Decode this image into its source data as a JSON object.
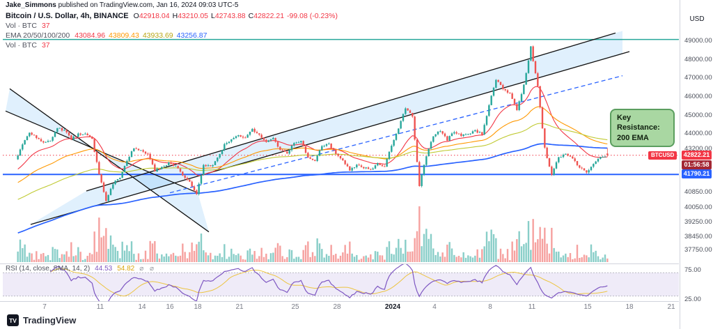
{
  "header": {
    "author": "Jake_Simmons",
    "rest": " published on TradingView.com, Jan 16, 2024 09:03 UTC-5"
  },
  "legend": {
    "title": "Bitcoin / U.S. Dollar, 4h, BINANCE",
    "ohlc": [
      [
        "O",
        "42918.04"
      ],
      [
        "H",
        "43210.05"
      ],
      [
        "L",
        "42743.88"
      ],
      [
        "C",
        "42822.21"
      ]
    ],
    "change": "-99.08 (-0.23%)",
    "vol_label": "Vol · BTC",
    "vol_value": "37",
    "ema_label": "EMA 20/50/100/200",
    "ema_values": [
      "43084.96",
      "43809.43",
      "43933.69",
      "43256.87"
    ],
    "ema_value_colors": [
      "#f23645",
      "#ff9800",
      "#b8a514",
      "#2962ff"
    ]
  },
  "rsi_legend": {
    "label": "RSI (14, close, SMA, 14, 2)",
    "value_rsi": "44.53",
    "value_sma": "54.82",
    "hide_icons": "⌀ ⌀"
  },
  "axis": {
    "currency_label": "USD",
    "price_ticks": [
      "49000.00",
      "48000.00",
      "47000.00",
      "46000.00",
      "45000.00",
      "44000.00",
      "43200.00",
      "40850.00",
      "40050.00",
      "39250.00",
      "38450.00",
      "37750.00"
    ],
    "rsi_ticks": [
      {
        "label": "75.00",
        "value": 75
      },
      {
        "label": "25.00",
        "value": 25
      }
    ],
    "price_badge": {
      "text": "42822.21",
      "price": 42822.21,
      "color": "#f23645"
    },
    "countdown_badge": {
      "text": "01:56:58",
      "color": "#a32734"
    },
    "level_badge": {
      "text": "41790.21",
      "price": 41790.21,
      "color": "#2962ff"
    }
  },
  "symbol_tag": {
    "text": "BTCUSD",
    "price": 42822.21
  },
  "annotation": {
    "text": "Key Resistance: 200 EMA"
  },
  "footer": {
    "brand": "TradingView"
  },
  "chart_data": {
    "type": "candlestick",
    "title": "Bitcoin / U.S. Dollar, 4h, BINANCE",
    "x_axis_note": "days, Dec 5 2023 = day 0, 6 candles per day (4h)",
    "price_axis_range_visible": [
      37075,
      50425
    ],
    "closes_12h": [
      42600,
      43400,
      44050,
      43800,
      43500,
      43650,
      44300,
      44150,
      43700,
      43950,
      44000,
      43650,
      41800,
      40350,
      41300,
      41600,
      42500,
      43250,
      43050,
      42850,
      42000,
      42150,
      42400,
      42250,
      41700,
      41350,
      40750,
      42300,
      42200,
      42650,
      43400,
      43700,
      43900,
      43750,
      44250,
      43900,
      43600,
      43800,
      43100,
      42950,
      43500,
      43550,
      42700,
      42500,
      43300,
      43400,
      42950,
      42500,
      42050,
      42300,
      42150,
      42050,
      42350,
      42250,
      43300,
      44300,
      45400,
      44950,
      41200,
      42800,
      43900,
      44150,
      43650,
      44100,
      43900,
      44000,
      44150,
      43950,
      45500,
      46900,
      46400,
      46150,
      45300,
      46600,
      48650,
      46500,
      43200,
      41750,
      42750,
      42850,
      42650,
      42150,
      41900,
      42400,
      42750,
      42822.21
    ],
    "last_candle": {
      "o": 42918.04,
      "h": 43210.05,
      "l": 42743.88,
      "c": 42822.21
    },
    "candle_colors": {
      "up": "#26a69a",
      "down": "#ef5350"
    },
    "volume_colors": {
      "up": "rgba(38,166,154,0.55)",
      "down": "rgba(239,83,80,0.55)"
    },
    "ema_periods": [
      20,
      50,
      100,
      200
    ],
    "ema_seeds": [
      42000,
      41300,
      40400,
      38600
    ],
    "ema_colors": [
      "#f23645",
      "#ff9800",
      "#c0ca33",
      "#2962ff"
    ],
    "hlines": [
      {
        "name": "resistance-line",
        "price": 49050,
        "color": "#26a69a",
        "style": "solid",
        "width": 1.5
      },
      {
        "name": "support-level-line",
        "price": 41790.21,
        "color": "#2962ff",
        "style": "solid",
        "width": 2
      },
      {
        "name": "last-price-line",
        "price": 42822.21,
        "color": "#f23645",
        "style": "dotted",
        "width": 1
      }
    ],
    "trendlines": [
      {
        "name": "descending-trendline-steep",
        "x1_day": -0.5,
        "p1": 46400,
        "x2_day": 13.8,
        "p2": 38700,
        "style": "solid",
        "color": "#111111",
        "width": 1.3
      },
      {
        "name": "descending-trendline-shallow",
        "x1_day": -0.8,
        "p1": 45200,
        "x2_day": 13.0,
        "p2": 40800,
        "style": "solid",
        "color": "#111111",
        "width": 1.3
      },
      {
        "name": "ascending-channel-support",
        "x1_day": 1.0,
        "p1": 39100,
        "x2_day": 44.0,
        "p2": 48400,
        "style": "solid",
        "color": "#111111",
        "width": 1.3
      },
      {
        "name": "ascending-channel-resistance",
        "x1_day": 5.0,
        "p1": 40900,
        "x2_day": 43.0,
        "p2": 49400,
        "style": "solid",
        "color": "#111111",
        "width": 1.3
      },
      {
        "name": "ascending-dashed-midline",
        "x1_day": 11.0,
        "p1": 40800,
        "x2_day": 43.5,
        "p2": 47100,
        "style": "dashed",
        "color": "#2962ff",
        "width": 1.3
      }
    ],
    "fills": [
      {
        "name": "ascending-channel-fill",
        "points_day_price": [
          [
            1.0,
            39100
          ],
          [
            43.5,
            48290
          ],
          [
            43.5,
            49512
          ],
          [
            5.0,
            40900
          ]
        ],
        "color": "rgba(33,150,243,0.14)"
      },
      {
        "name": "descending-wedge-fill",
        "points_day_price": [
          [
            -0.5,
            46400
          ],
          [
            13.8,
            38700
          ],
          [
            13.0,
            40800
          ],
          [
            -0.8,
            45200
          ]
        ],
        "color": "rgba(33,150,243,0.14)"
      }
    ],
    "x_ticks": [
      {
        "label": "7",
        "day": 2
      },
      {
        "label": "11",
        "day": 6
      },
      {
        "label": "14",
        "day": 9
      },
      {
        "label": "16",
        "day": 11
      },
      {
        "label": "18",
        "day": 13
      },
      {
        "label": "21",
        "day": 16
      },
      {
        "label": "25",
        "day": 20
      },
      {
        "label": "28",
        "day": 23
      },
      {
        "label": "2024",
        "day": 27,
        "bold": true
      },
      {
        "label": "4",
        "day": 30
      },
      {
        "label": "8",
        "day": 34
      },
      {
        "label": "11",
        "day": 37
      },
      {
        "label": "15",
        "day": 41
      },
      {
        "label": "18",
        "day": 44
      },
      {
        "label": "21",
        "day": 47
      }
    ],
    "rsi": {
      "period": 14,
      "sma_period": 14,
      "band": [
        30,
        70
      ],
      "band_color": "rgba(126,87,194,0.12)",
      "line_color": "#7e57c2",
      "sma_color": "#ecc440",
      "last_rsi": 44.53,
      "last_sma": 54.82
    }
  }
}
